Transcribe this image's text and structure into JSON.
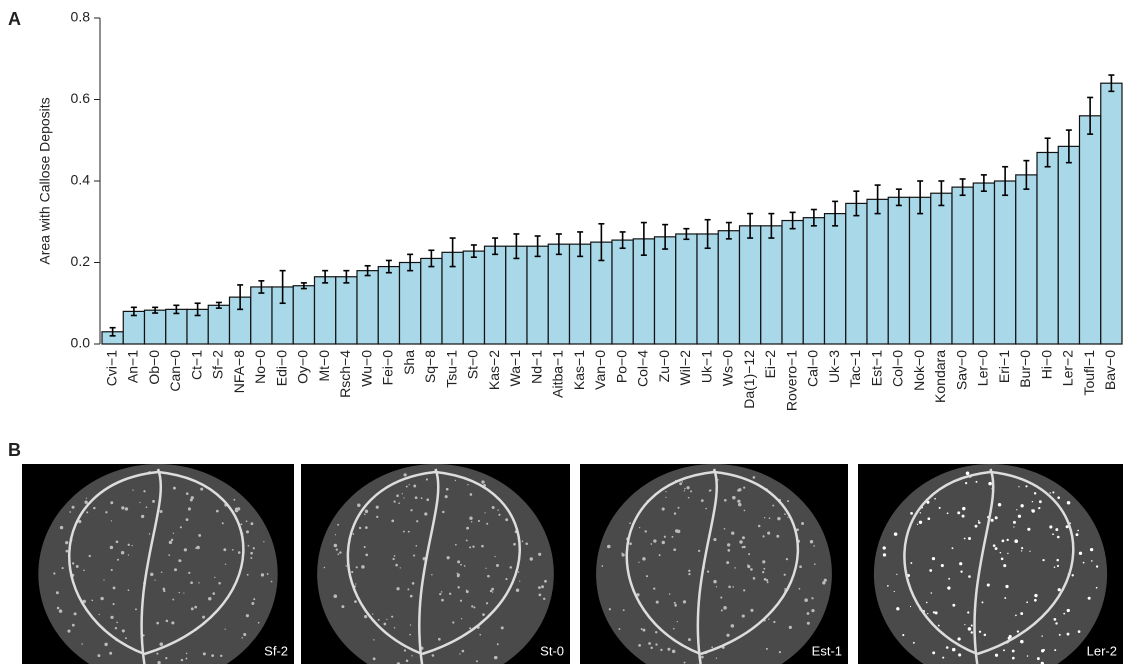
{
  "panel_labels": [
    "A",
    "B"
  ],
  "chart_data": {
    "type": "bar",
    "ylabel": "Area with Callose Deposits",
    "categories": [
      "Cvi−1",
      "An−1",
      "Ob−0",
      "Can−0",
      "Ct−1",
      "Sf−2",
      "NFA−8",
      "No−0",
      "Edi−0",
      "Oy−0",
      "Mt−0",
      "Rsch−4",
      "Wu−0",
      "Fei−0",
      "Sha",
      "Sq−8",
      "Tsu−1",
      "St−0",
      "Kas−2",
      "Wa−1",
      "Nd−1",
      "Aitba−1",
      "Kas−1",
      "Van−0",
      "Po−0",
      "Col−4",
      "Zu−0",
      "Wil−2",
      "Uk−1",
      "Ws−0",
      "Da(1)−12",
      "Ei−2",
      "Rovero−1",
      "Cal−0",
      "Uk−3",
      "Tac−1",
      "Est−1",
      "Col−0",
      "Nok−0",
      "Kondara",
      "Sav−0",
      "Ler−0",
      "Eri−1",
      "Bur−0",
      "Hi−0",
      "Ler−2",
      "Toufl−1",
      "Bav−0"
    ],
    "values": [
      0.03,
      0.08,
      0.083,
      0.085,
      0.085,
      0.095,
      0.115,
      0.14,
      0.14,
      0.143,
      0.165,
      0.165,
      0.18,
      0.19,
      0.2,
      0.21,
      0.225,
      0.228,
      0.24,
      0.24,
      0.24,
      0.245,
      0.245,
      0.25,
      0.255,
      0.258,
      0.263,
      0.27,
      0.27,
      0.278,
      0.29,
      0.29,
      0.303,
      0.31,
      0.32,
      0.345,
      0.355,
      0.36,
      0.36,
      0.37,
      0.385,
      0.395,
      0.4,
      0.415,
      0.47,
      0.485,
      0.56,
      0.64
    ],
    "errors": [
      0.01,
      0.01,
      0.007,
      0.01,
      0.015,
      0.007,
      0.03,
      0.015,
      0.04,
      0.007,
      0.015,
      0.015,
      0.012,
      0.015,
      0.02,
      0.02,
      0.035,
      0.015,
      0.02,
      0.03,
      0.025,
      0.025,
      0.03,
      0.045,
      0.02,
      0.04,
      0.03,
      0.013,
      0.035,
      0.02,
      0.03,
      0.03,
      0.02,
      0.02,
      0.03,
      0.03,
      0.035,
      0.02,
      0.04,
      0.03,
      0.02,
      0.02,
      0.035,
      0.035,
      0.035,
      0.04,
      0.045,
      0.02
    ],
    "color": "#a9d9e9",
    "ylim": [
      0,
      0.8
    ],
    "yticks": [
      {
        "value": 0,
        "label": "0.0"
      },
      0.2,
      0.4,
      0.6,
      0.8
    ]
  },
  "images": [
    "Sf-2",
    "St-0",
    "Est-1",
    "Ler-2"
  ]
}
